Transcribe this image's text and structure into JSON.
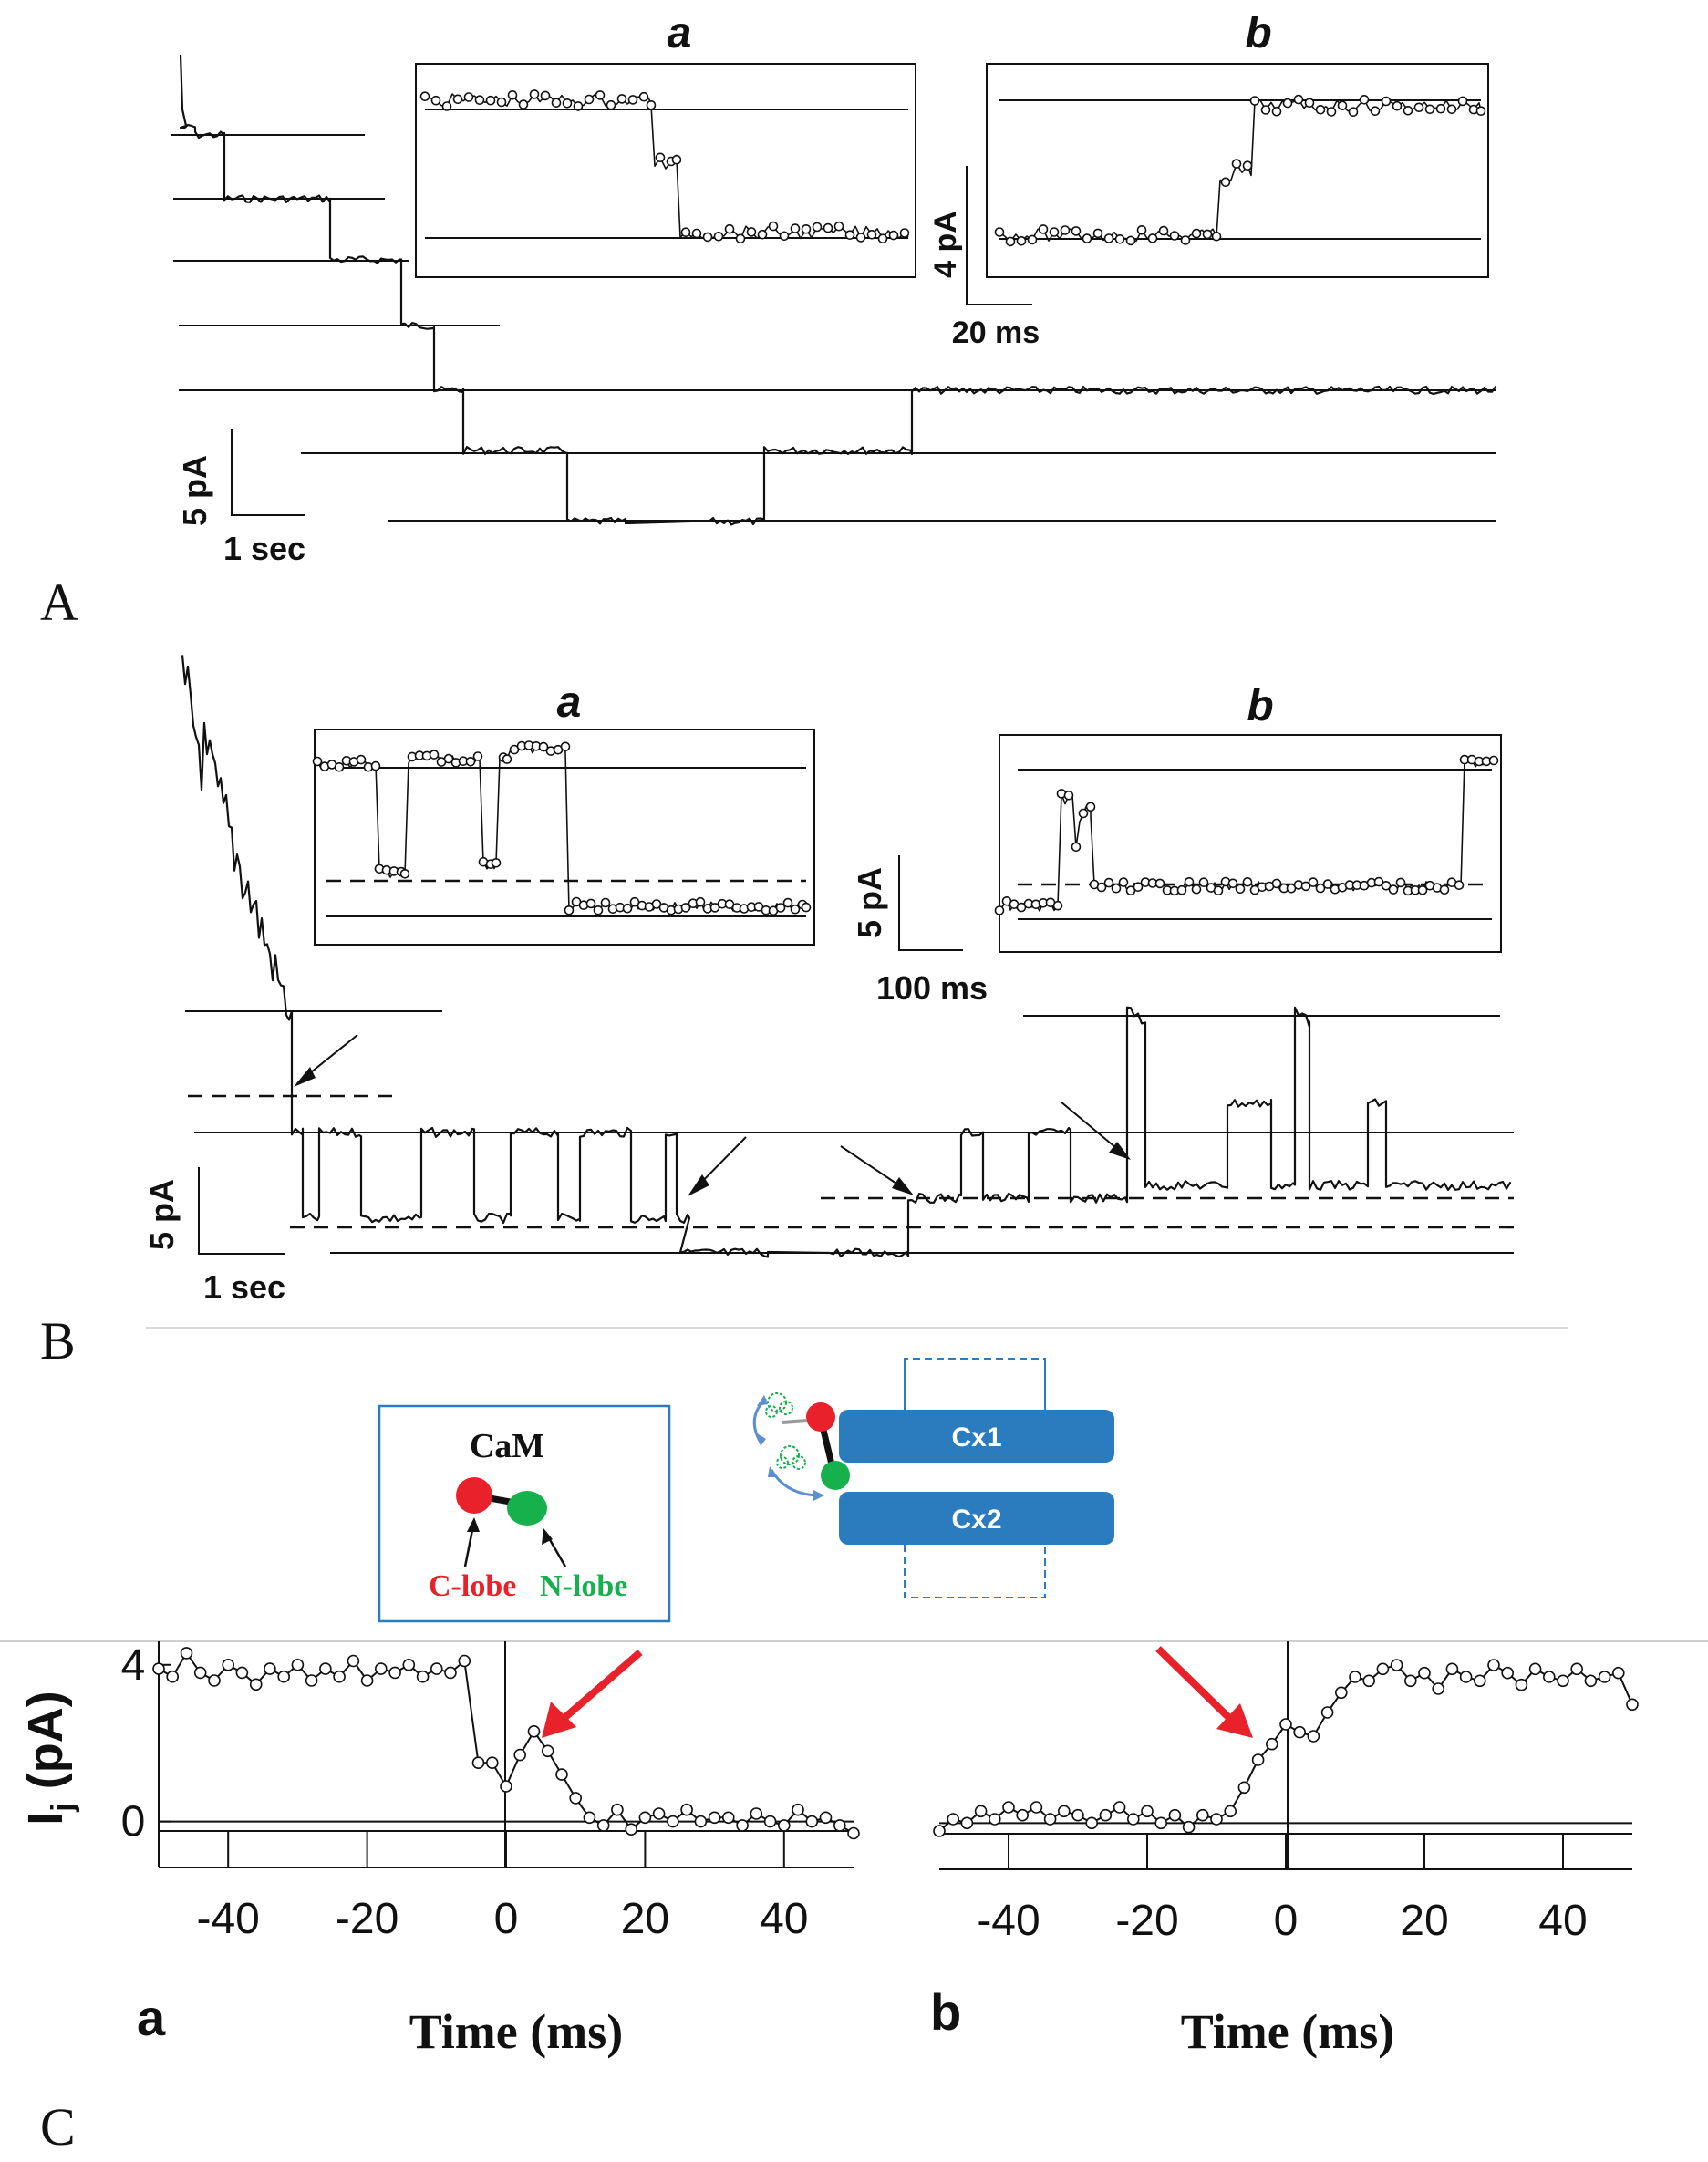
{
  "panels": {
    "A": {
      "label": "A",
      "inset_a_label": "a",
      "inset_b_label": "b",
      "scale_main_y": "5 pA",
      "scale_main_x": "1 sec",
      "scale_inset_y": "4 pA",
      "scale_inset_x": "20 ms"
    },
    "B": {
      "label": "B",
      "inset_a_label": "a",
      "inset_b_label": "b",
      "scale_main_y": "5 pA",
      "scale_main_x": "1 sec",
      "scale_inset_y": "5 pA",
      "scale_inset_x": "100 ms"
    },
    "C": {
      "label": "C",
      "cam_box": {
        "title": "CaM",
        "c_lobe": "C-lobe",
        "n_lobe": "N-lobe"
      },
      "channel": {
        "cx1": "Cx1",
        "cx2": "Cx2"
      },
      "sub_a": "a",
      "sub_b": "b",
      "ylabel_main": "I",
      "ylabel_sub": "j",
      "ylabel_unit": " (pA)",
      "xlabel": "Time (ms)",
      "y_ticks": [
        "4",
        "0"
      ],
      "x_ticks": [
        "-40",
        "-20",
        "0",
        "20",
        "40"
      ]
    }
  },
  "colors": {
    "c_lobe": "#e8212a",
    "n_lobe": "#16b04d",
    "cx_box": "#2b7bbf",
    "arrow": "#e8212a",
    "link": "#5b8fd0"
  },
  "chart_data": [
    {
      "type": "line",
      "xlabel": "Time (ms)",
      "ylabel": "Ij (pA)",
      "xlim": [
        -50,
        50
      ],
      "ylim": [
        -0.8,
        4.6
      ],
      "x": [
        -50,
        -48,
        -46,
        -44,
        -42,
        -40,
        -38,
        -36,
        -34,
        -32,
        -30,
        -28,
        -26,
        -24,
        -22,
        -20,
        -18,
        -16,
        -14,
        -12,
        -10,
        -8,
        -6,
        -4,
        -2,
        0,
        2,
        4,
        6,
        8,
        10,
        12,
        14,
        16,
        18,
        20,
        22,
        24,
        26,
        28,
        30,
        32,
        34,
        36,
        38,
        40,
        42,
        44,
        46,
        48,
        50
      ],
      "y": [
        3.9,
        3.7,
        4.3,
        3.8,
        3.6,
        4.0,
        3.8,
        3.5,
        3.9,
        3.7,
        4.0,
        3.6,
        3.9,
        3.7,
        4.1,
        3.6,
        3.9,
        3.8,
        4.0,
        3.7,
        3.9,
        3.8,
        4.1,
        1.5,
        1.5,
        0.9,
        1.7,
        2.3,
        1.8,
        1.2,
        0.6,
        0.1,
        -0.1,
        0.3,
        -0.2,
        0.1,
        0.2,
        0.0,
        0.3,
        0.0,
        0.1,
        0.1,
        -0.1,
        0.2,
        0.0,
        -0.1,
        0.3,
        0.0,
        0.1,
        -0.1,
        -0.3
      ]
    },
    {
      "type": "line",
      "xlabel": "Time (ms)",
      "ylabel": "Ij (pA)",
      "xlim": [
        -50,
        50
      ],
      "ylim": [
        -0.8,
        4.6
      ],
      "x": [
        -50,
        -48,
        -46,
        -44,
        -42,
        -40,
        -38,
        -36,
        -34,
        -32,
        -30,
        -28,
        -26,
        -24,
        -22,
        -20,
        -18,
        -16,
        -14,
        -12,
        -10,
        -8,
        -6,
        -4,
        -2,
        0,
        2,
        4,
        6,
        8,
        10,
        12,
        14,
        16,
        18,
        20,
        22,
        24,
        26,
        28,
        30,
        32,
        34,
        36,
        38,
        40,
        42,
        44,
        46,
        48,
        50
      ],
      "y": [
        -0.2,
        0.1,
        0.0,
        0.3,
        0.1,
        0.4,
        0.2,
        0.4,
        0.1,
        0.3,
        0.2,
        0.0,
        0.2,
        0.4,
        0.1,
        0.3,
        0.0,
        0.2,
        -0.1,
        0.2,
        0.1,
        0.3,
        0.9,
        1.6,
        2.0,
        2.5,
        2.3,
        2.2,
        2.8,
        3.3,
        3.7,
        3.6,
        3.9,
        4.0,
        3.6,
        3.8,
        3.4,
        3.9,
        3.7,
        3.6,
        4.0,
        3.8,
        3.5,
        3.9,
        3.7,
        3.6,
        3.9,
        3.6,
        3.7,
        3.8,
        3.0
      ]
    }
  ]
}
